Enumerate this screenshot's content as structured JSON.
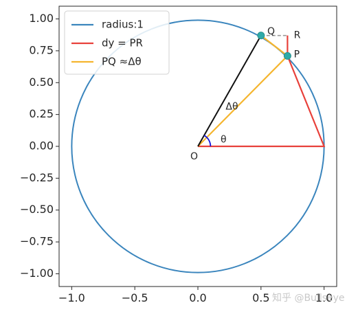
{
  "chart_data": {
    "type": "line",
    "title": "",
    "xlabel": "",
    "ylabel": "",
    "xlim": [
      -1.1,
      1.1
    ],
    "ylim": [
      -1.1,
      1.1
    ],
    "grid": false,
    "aspect": "equal",
    "x_ticks": [
      -1.0,
      -0.5,
      0.0,
      0.5,
      1.0
    ],
    "x_tick_labels": [
      "−1.0",
      "−0.5",
      "0.0",
      "0.5",
      "1.0"
    ],
    "y_ticks": [
      1.0,
      0.75,
      0.5,
      0.25,
      0.0,
      -0.25,
      -0.5,
      -0.75,
      -1.0
    ],
    "y_tick_labels": [
      "1.00",
      "0.75",
      "0.50",
      "0.25",
      "0.00",
      "−0.25",
      "−0.50",
      "−0.75",
      "−1.00"
    ],
    "legend_position": "top-left",
    "series": [
      {
        "name": "radius:1",
        "color": "#3a85bd",
        "shape": "circle",
        "center": [
          0,
          0
        ],
        "radius": 1
      },
      {
        "name": "dy = PR",
        "color": "#e8403a",
        "points": [
          [
            0.0,
            0.0
          ],
          [
            1.0,
            0.0
          ],
          [
            0.71,
            0.71
          ],
          [
            0.71,
            0.87
          ]
        ]
      },
      {
        "name": "PQ ≈Δθ",
        "color": "#f5b52e",
        "points": [
          [
            0.0,
            0.0
          ],
          [
            0.71,
            0.71
          ],
          [
            0.5,
            0.87
          ]
        ]
      }
    ],
    "extra_lines": [
      {
        "color": "#111111",
        "from": [
          0.0,
          0.0
        ],
        "to": [
          0.5,
          0.87
        ]
      },
      {
        "color": "#9a9a9a",
        "dashed": true,
        "from": [
          0.5,
          0.87
        ],
        "to": [
          0.71,
          0.87
        ]
      }
    ],
    "markers": [
      {
        "color": "#2eaaa8",
        "at": [
          0.5,
          0.87
        ]
      },
      {
        "color": "#2eaaa8",
        "at": [
          0.71,
          0.71
        ]
      }
    ],
    "angle_arc": {
      "color": "#1010dd",
      "radius": 0.1,
      "from_deg": 0,
      "to_deg": 60
    },
    "annotations": [
      {
        "text": "Q",
        "x": 0.55,
        "y": 0.9
      },
      {
        "text": "R",
        "x": 0.76,
        "y": 0.87
      },
      {
        "text": "P",
        "x": 0.76,
        "y": 0.72
      },
      {
        "text": "Δθ",
        "x": 0.22,
        "y": 0.31
      },
      {
        "text": "θ",
        "x": 0.18,
        "y": 0.05
      },
      {
        "text": "O",
        "x": -0.06,
        "y": -0.08
      }
    ]
  },
  "watermark": "知乎 @Bullseye"
}
